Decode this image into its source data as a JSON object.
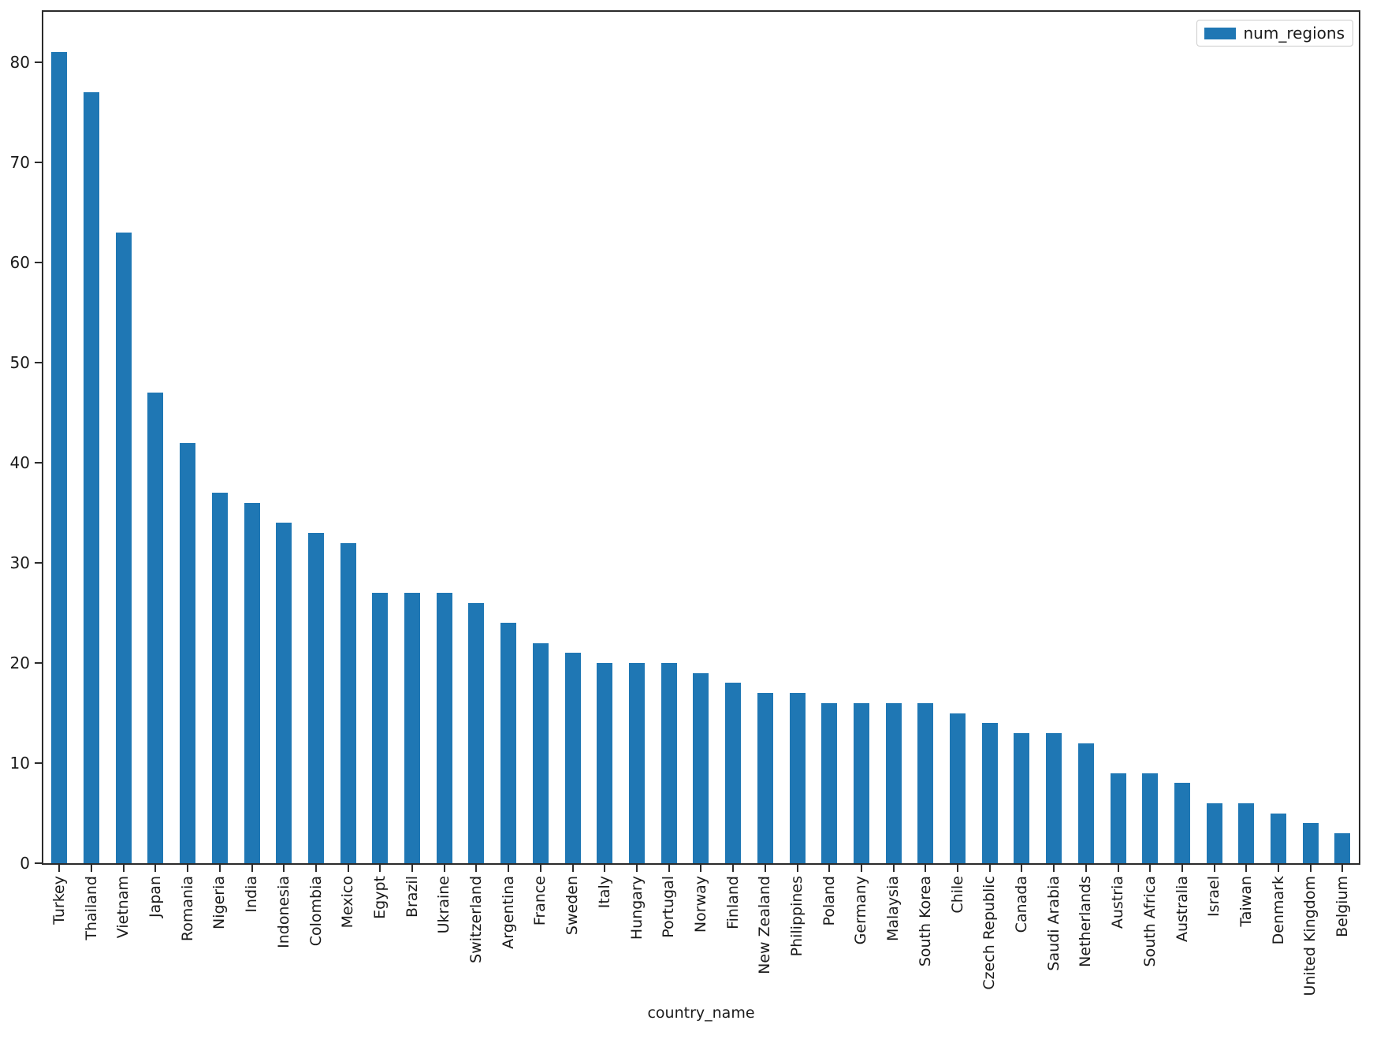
{
  "chart_data": {
    "type": "bar",
    "title": "",
    "xlabel": "country_name",
    "ylabel": "",
    "categories": [
      "Turkey",
      "Thailand",
      "Vietnam",
      "Japan",
      "Romania",
      "Nigeria",
      "India",
      "Indonesia",
      "Colombia",
      "Mexico",
      "Egypt",
      "Brazil",
      "Ukraine",
      "Switzerland",
      "Argentina",
      "France",
      "Sweden",
      "Italy",
      "Hungary",
      "Portugal",
      "Norway",
      "Finland",
      "New Zealand",
      "Philippines",
      "Poland",
      "Germany",
      "Malaysia",
      "South Korea",
      "Chile",
      "Czech Republic",
      "Canada",
      "Saudi Arabia",
      "Netherlands",
      "Austria",
      "South Africa",
      "Australia",
      "Israel",
      "Taiwan",
      "Denmark",
      "United Kingdom",
      "Belgium"
    ],
    "series": [
      {
        "name": "num_regions",
        "values": [
          81,
          77,
          63,
          47,
          42,
          37,
          36,
          34,
          33,
          32,
          27,
          27,
          27,
          26,
          24,
          22,
          21,
          20,
          20,
          20,
          19,
          18,
          17,
          17,
          16,
          16,
          16,
          16,
          15,
          14,
          13,
          13,
          12,
          9,
          9,
          8,
          6,
          6,
          5,
          4,
          3
        ]
      }
    ],
    "yticks": [
      0,
      10,
      20,
      30,
      40,
      50,
      60,
      70,
      80
    ],
    "ylim": [
      0,
      85.05
    ],
    "x_tick_rotation": 90,
    "grid": false,
    "legend": {
      "label": "num_regions",
      "position": "upper right"
    },
    "colors": {
      "bar": "#1f77b4",
      "spine": "#2b2b2b",
      "text": "#1a1a1a",
      "legend_border": "#cccccc",
      "background": "#ffffff"
    }
  }
}
